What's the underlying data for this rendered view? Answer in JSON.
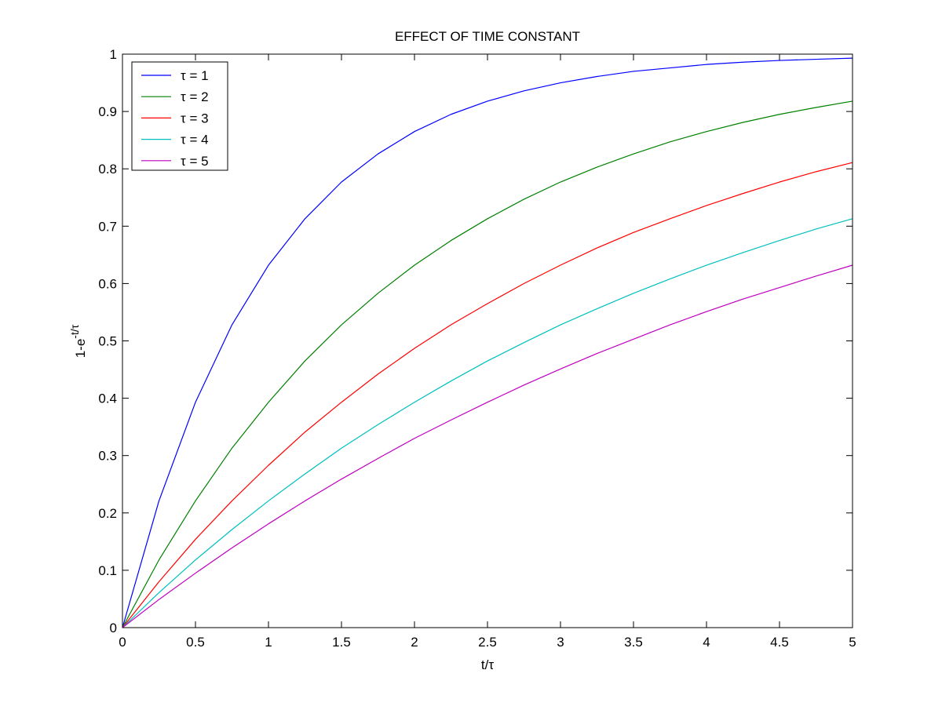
{
  "chart_data": {
    "type": "line",
    "title": "EFFECT OF TIME CONSTANT",
    "xlabel": "t/τ",
    "ylabel": {
      "base": "1-e",
      "superscript": "-t/τ"
    },
    "xlim": [
      0,
      5
    ],
    "ylim": [
      0,
      1
    ],
    "xticks": [
      0,
      0.5,
      1,
      1.5,
      2,
      2.5,
      3,
      3.5,
      4,
      4.5,
      5
    ],
    "xtick_labels": [
      "0",
      "0.5",
      "1",
      "1.5",
      "2",
      "2.5",
      "3",
      "3.5",
      "4",
      "4.5",
      "5"
    ],
    "yticks": [
      0,
      0.1,
      0.2,
      0.3,
      0.4,
      0.5,
      0.6,
      0.7,
      0.8,
      0.9,
      1
    ],
    "ytick_labels": [
      "0",
      "0.1",
      "0.2",
      "0.3",
      "0.4",
      "0.5",
      "0.6",
      "0.7",
      "0.8",
      "0.9",
      "1"
    ],
    "grid": false,
    "legend_position": "top-left",
    "x": [
      0,
      0.25,
      0.5,
      0.75,
      1,
      1.25,
      1.5,
      1.75,
      2,
      2.25,
      2.5,
      2.75,
      3,
      3.25,
      3.5,
      3.75,
      4,
      4.25,
      4.5,
      4.75,
      5
    ],
    "series": [
      {
        "name": "τ = 1",
        "color": "#0000ff",
        "values": [
          0,
          0.221,
          0.393,
          0.528,
          0.632,
          0.713,
          0.777,
          0.826,
          0.865,
          0.895,
          0.918,
          0.936,
          0.95,
          0.961,
          0.97,
          0.976,
          0.982,
          0.986,
          0.989,
          0.991,
          0.993
        ]
      },
      {
        "name": "τ = 2",
        "color": "#008000",
        "values": [
          0,
          0.118,
          0.221,
          0.313,
          0.393,
          0.465,
          0.528,
          0.583,
          0.632,
          0.675,
          0.713,
          0.747,
          0.777,
          0.803,
          0.826,
          0.847,
          0.865,
          0.881,
          0.895,
          0.907,
          0.918
        ]
      },
      {
        "name": "τ = 3",
        "color": "#ff0000",
        "values": [
          0,
          0.08,
          0.154,
          0.221,
          0.283,
          0.341,
          0.393,
          0.442,
          0.487,
          0.528,
          0.565,
          0.6,
          0.632,
          0.662,
          0.689,
          0.713,
          0.736,
          0.757,
          0.777,
          0.795,
          0.811
        ]
      },
      {
        "name": "τ = 4",
        "color": "#00bfbf",
        "values": [
          0,
          0.061,
          0.118,
          0.171,
          0.221,
          0.268,
          0.313,
          0.354,
          0.393,
          0.43,
          0.465,
          0.497,
          0.528,
          0.556,
          0.583,
          0.608,
          0.632,
          0.654,
          0.675,
          0.695,
          0.713
        ]
      },
      {
        "name": "τ = 5",
        "color": "#bf00bf",
        "values": [
          0,
          0.049,
          0.095,
          0.139,
          0.181,
          0.221,
          0.259,
          0.295,
          0.33,
          0.362,
          0.393,
          0.423,
          0.451,
          0.478,
          0.503,
          0.528,
          0.551,
          0.573,
          0.593,
          0.613,
          0.632
        ]
      }
    ]
  }
}
